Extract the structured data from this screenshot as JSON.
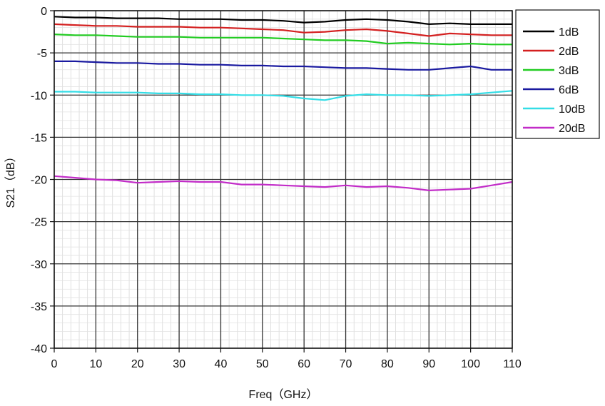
{
  "chart_data": {
    "type": "line",
    "xlabel": "Freq（GHz）",
    "ylabel": "S21（dB）",
    "xlim": [
      0,
      110
    ],
    "ylim": [
      -40,
      0
    ],
    "x_ticks": [
      0,
      10,
      20,
      30,
      40,
      50,
      60,
      70,
      80,
      90,
      100,
      110
    ],
    "y_ticks": [
      0,
      -5,
      -10,
      -15,
      -20,
      -25,
      -30,
      -35,
      -40
    ],
    "grid": true,
    "legend_position": "top-right",
    "x": [
      0,
      5,
      10,
      15,
      20,
      25,
      30,
      35,
      40,
      45,
      50,
      55,
      60,
      65,
      70,
      75,
      80,
      85,
      90,
      95,
      100,
      105,
      110
    ],
    "series": [
      {
        "name": "1dB",
        "color": "#000000",
        "values": [
          -0.7,
          -0.8,
          -0.8,
          -0.9,
          -0.9,
          -0.9,
          -1.0,
          -1.0,
          -1.0,
          -1.1,
          -1.1,
          -1.2,
          -1.4,
          -1.3,
          -1.1,
          -1.0,
          -1.1,
          -1.3,
          -1.6,
          -1.5,
          -1.6,
          -1.6,
          -1.6
        ]
      },
      {
        "name": "2dB",
        "color": "#d42020",
        "values": [
          -1.6,
          -1.7,
          -1.8,
          -1.8,
          -1.9,
          -1.9,
          -1.9,
          -2.0,
          -2.0,
          -2.1,
          -2.2,
          -2.3,
          -2.6,
          -2.5,
          -2.3,
          -2.2,
          -2.4,
          -2.7,
          -3.0,
          -2.7,
          -2.8,
          -2.9,
          -2.9
        ]
      },
      {
        "name": "3dB",
        "color": "#22cc22",
        "values": [
          -2.8,
          -2.9,
          -2.9,
          -3.0,
          -3.1,
          -3.1,
          -3.1,
          -3.2,
          -3.2,
          -3.2,
          -3.2,
          -3.3,
          -3.4,
          -3.5,
          -3.5,
          -3.6,
          -3.9,
          -3.8,
          -3.9,
          -4.0,
          -3.9,
          -4.0,
          -4.0
        ]
      },
      {
        "name": "6dB",
        "color": "#1a1aa0",
        "values": [
          -6.0,
          -6.0,
          -6.1,
          -6.2,
          -6.2,
          -6.3,
          -6.3,
          -6.4,
          -6.4,
          -6.5,
          -6.5,
          -6.6,
          -6.6,
          -6.7,
          -6.8,
          -6.8,
          -6.9,
          -7.0,
          -7.0,
          -6.8,
          -6.6,
          -7.0,
          -7.0
        ]
      },
      {
        "name": "10dB",
        "color": "#33dde6",
        "values": [
          -9.6,
          -9.6,
          -9.7,
          -9.7,
          -9.7,
          -9.8,
          -9.8,
          -9.9,
          -9.9,
          -10.0,
          -10.0,
          -10.1,
          -10.4,
          -10.6,
          -10.1,
          -9.9,
          -10.0,
          -10.0,
          -10.1,
          -10.0,
          -9.9,
          -9.7,
          -9.5
        ]
      },
      {
        "name": "20dB",
        "color": "#c22cc8",
        "values": [
          -19.6,
          -19.8,
          -20.0,
          -20.1,
          -20.4,
          -20.3,
          -20.2,
          -20.3,
          -20.3,
          -20.6,
          -20.6,
          -20.7,
          -20.8,
          -20.9,
          -20.7,
          -20.9,
          -20.8,
          -21.0,
          -21.3,
          -21.2,
          -21.1,
          -20.7,
          -20.3
        ]
      }
    ]
  }
}
